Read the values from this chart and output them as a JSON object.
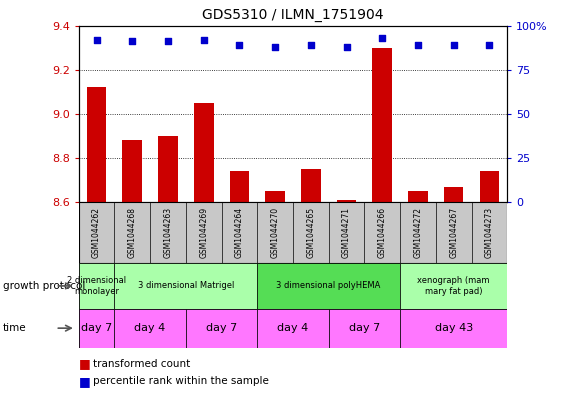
{
  "title": "GDS5310 / ILMN_1751904",
  "samples": [
    "GSM1044262",
    "GSM1044268",
    "GSM1044263",
    "GSM1044269",
    "GSM1044264",
    "GSM1044270",
    "GSM1044265",
    "GSM1044271",
    "GSM1044266",
    "GSM1044272",
    "GSM1044267",
    "GSM1044273"
  ],
  "bar_values": [
    9.12,
    8.88,
    8.9,
    9.05,
    8.74,
    8.65,
    8.75,
    8.61,
    9.3,
    8.65,
    8.67,
    8.74
  ],
  "dot_values": [
    92,
    91,
    91,
    92,
    89,
    88,
    89,
    88,
    93,
    89,
    89,
    89
  ],
  "bar_color": "#cc0000",
  "dot_color": "#0000cc",
  "ymin": 8.6,
  "ymax": 9.4,
  "y2min": 0,
  "y2max": 100,
  "yticks": [
    8.6,
    8.8,
    9.0,
    9.2,
    9.4
  ],
  "y2ticks": [
    0,
    25,
    50,
    75,
    100
  ],
  "growth_protocol_groups": [
    {
      "label": "2 dimensional\nmonolayer",
      "start": 0,
      "end": 1,
      "color": "#aaffaa"
    },
    {
      "label": "3 dimensional Matrigel",
      "start": 1,
      "end": 5,
      "color": "#aaffaa"
    },
    {
      "label": "3 dimensional polyHEMA",
      "start": 5,
      "end": 9,
      "color": "#55dd55"
    },
    {
      "label": "xenograph (mam\nmary fat pad)",
      "start": 9,
      "end": 12,
      "color": "#aaffaa"
    }
  ],
  "time_groups": [
    {
      "label": "day 7",
      "start": 0,
      "end": 1,
      "color": "#ff77ff"
    },
    {
      "label": "day 4",
      "start": 1,
      "end": 3,
      "color": "#ff77ff"
    },
    {
      "label": "day 7",
      "start": 3,
      "end": 5,
      "color": "#ff77ff"
    },
    {
      "label": "day 4",
      "start": 5,
      "end": 7,
      "color": "#ff77ff"
    },
    {
      "label": "day 7",
      "start": 7,
      "end": 9,
      "color": "#ff77ff"
    },
    {
      "label": "day 43",
      "start": 9,
      "end": 12,
      "color": "#ff77ff"
    }
  ],
  "legend_items": [
    {
      "label": "transformed count",
      "color": "#cc0000"
    },
    {
      "label": "percentile rank within the sample",
      "color": "#0000cc"
    }
  ],
  "growth_protocol_label": "growth protocol",
  "time_label": "time",
  "sample_bg_color": "#c8c8c8",
  "background_color": "#ffffff"
}
